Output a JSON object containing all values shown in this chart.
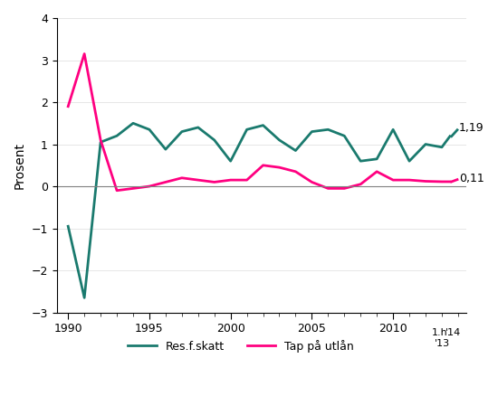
{
  "res_skatt_x": [
    1990,
    1991,
    1992,
    1993,
    1994,
    1995,
    1996,
    1997,
    1998,
    1999,
    2000,
    2001,
    2002,
    2003,
    2004,
    2005,
    2006,
    2007,
    2008,
    2009,
    2010,
    2011,
    2012,
    2013,
    2013.5
  ],
  "res_skatt_y": [
    -0.95,
    -2.65,
    1.05,
    1.2,
    1.5,
    1.35,
    0.88,
    1.3,
    1.4,
    1.1,
    0.6,
    1.35,
    1.45,
    1.1,
    0.85,
    1.3,
    1.35,
    1.2,
    0.6,
    0.65,
    1.35,
    0.6,
    1.0,
    0.93,
    1.19
  ],
  "tap_x": [
    1990,
    1991,
    1992,
    1993,
    1994,
    1995,
    1996,
    1997,
    1998,
    1999,
    2000,
    2001,
    2002,
    2003,
    2004,
    2005,
    2006,
    2007,
    2008,
    2009,
    2010,
    2011,
    2012,
    2013,
    2013.5
  ],
  "tap_y": [
    1.9,
    3.15,
    1.1,
    -0.1,
    -0.05,
    0.0,
    0.1,
    0.2,
    0.15,
    0.1,
    0.15,
    0.15,
    0.5,
    0.45,
    0.35,
    0.1,
    -0.05,
    -0.05,
    0.05,
    0.35,
    0.15,
    0.15,
    0.12,
    0.11,
    0.11
  ],
  "line1_color": "#1a7a6e",
  "line2_color": "#ff0080",
  "ylabel": "Prosent",
  "ylim": [
    -3,
    4
  ],
  "yticks": [
    -3,
    -2,
    -1,
    0,
    1,
    2,
    3,
    4
  ],
  "xlim_left": 1989.3,
  "xlim_right": 2014.5,
  "legend1_label": "Res.f.skatt",
  "legend2_label": "Tap på utlån",
  "label1_value": "1,19",
  "label2_value": "0,11",
  "background_color": "#ffffff"
}
